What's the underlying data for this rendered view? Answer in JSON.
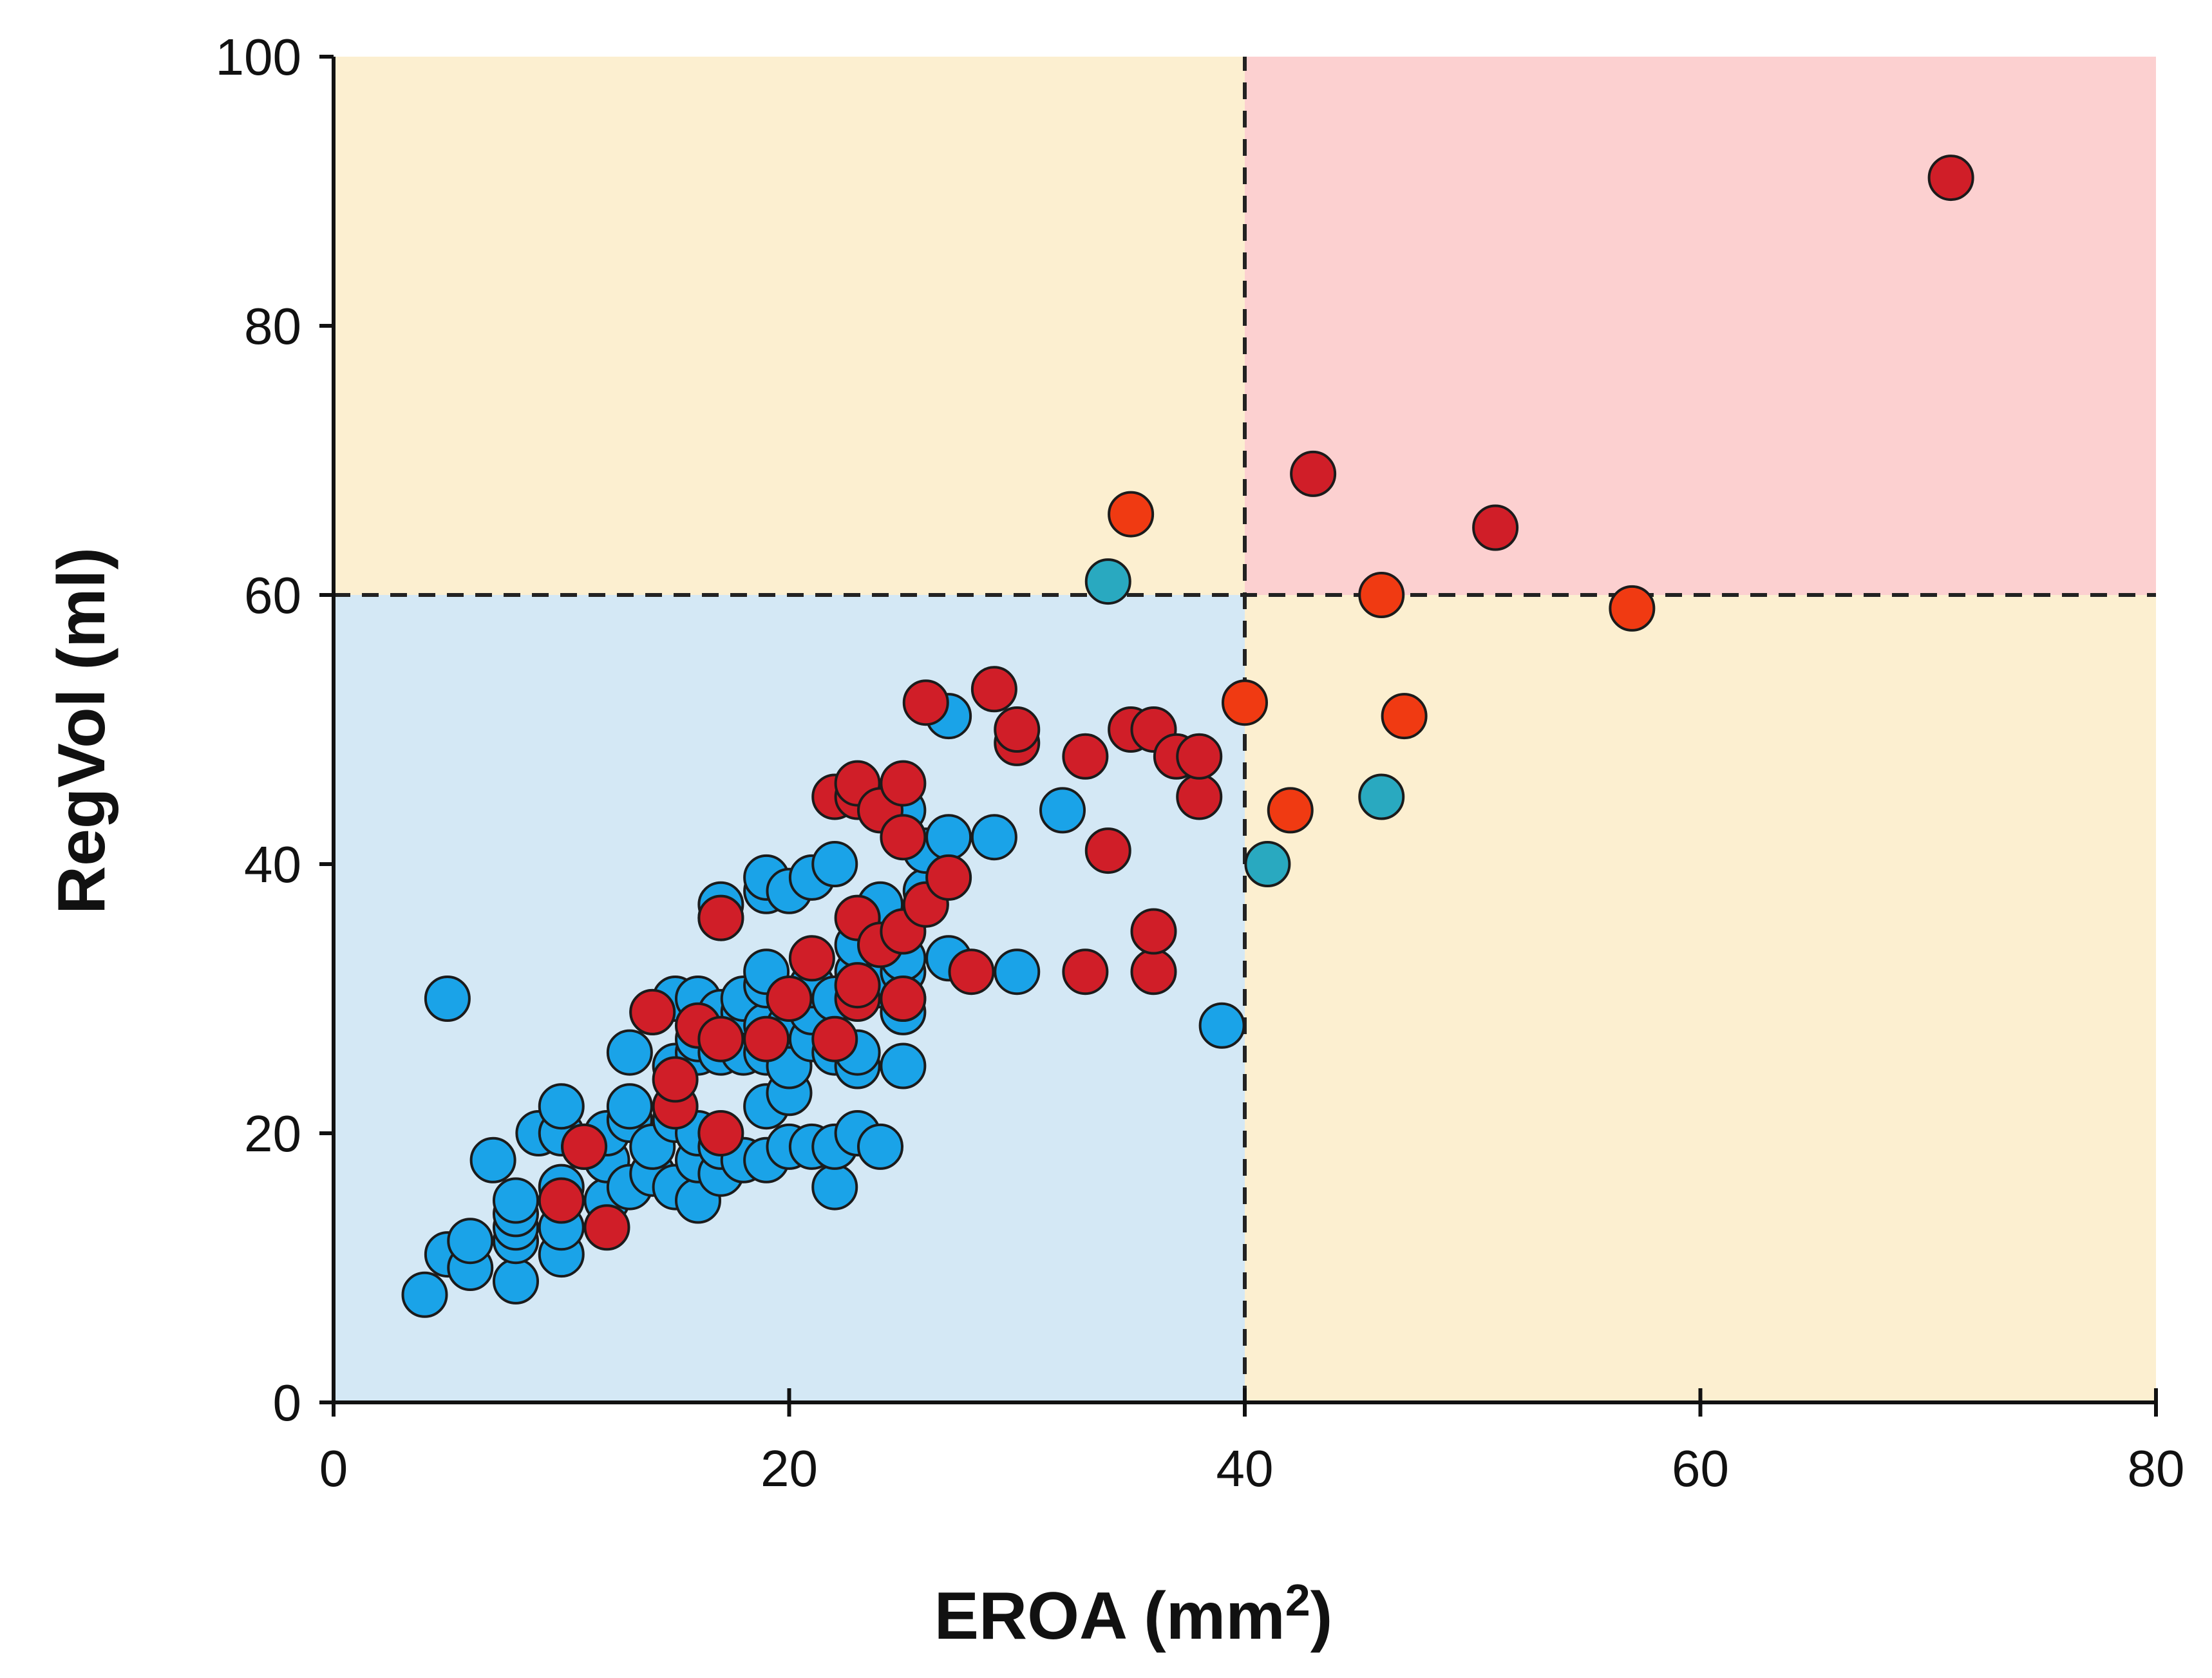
{
  "chart_data": {
    "type": "scatter",
    "xlabel": "EROA (mm",
    "xlabel_sup": "2",
    "xlabel_end": ")",
    "ylabel": "RegVol (ml)",
    "xlim": [
      0,
      80
    ],
    "ylim": [
      0,
      100
    ],
    "x_ticks": [
      0,
      20,
      40,
      60,
      80
    ],
    "y_ticks": [
      0,
      20,
      40,
      60,
      80,
      100
    ],
    "thresholds": {
      "x": 40,
      "y": 60
    },
    "grid": false,
    "legend": "none",
    "colors": {
      "region_low": "#d4e8f5",
      "region_mixed": "#fcefd0",
      "region_high": "#fcd0d0",
      "blue": "#1aa3e8",
      "red": "#d01e28",
      "teal": "#29a9c0",
      "orange_red": "#f03a12",
      "outline": "#1b1b1b"
    },
    "series": [
      {
        "color": "#1aa3e8",
        "points": [
          [
            4,
            8
          ],
          [
            5,
            11
          ],
          [
            5,
            30
          ],
          [
            6,
            10
          ],
          [
            6,
            12
          ],
          [
            7,
            18
          ],
          [
            8,
            9
          ],
          [
            8,
            12
          ],
          [
            8,
            13
          ],
          [
            8,
            14
          ],
          [
            8,
            15
          ],
          [
            9,
            20
          ],
          [
            10,
            11
          ],
          [
            10,
            13
          ],
          [
            10,
            16
          ],
          [
            10,
            20
          ],
          [
            10,
            22
          ],
          [
            11,
            19
          ],
          [
            12,
            15
          ],
          [
            12,
            18
          ],
          [
            12,
            20
          ],
          [
            13,
            16
          ],
          [
            13,
            21
          ],
          [
            13,
            22
          ],
          [
            13,
            26
          ],
          [
            14,
            17
          ],
          [
            14,
            19
          ],
          [
            14,
            29
          ],
          [
            15,
            16
          ],
          [
            15,
            21
          ],
          [
            15,
            25
          ],
          [
            15,
            30
          ],
          [
            16,
            15
          ],
          [
            16,
            18
          ],
          [
            16,
            20
          ],
          [
            16,
            26
          ],
          [
            16,
            27
          ],
          [
            16,
            30
          ],
          [
            17,
            17
          ],
          [
            17,
            19
          ],
          [
            17,
            26
          ],
          [
            17,
            29
          ],
          [
            17,
            36
          ],
          [
            17,
            37
          ],
          [
            18,
            18
          ],
          [
            18,
            26
          ],
          [
            18,
            29
          ],
          [
            18,
            30
          ],
          [
            19,
            18
          ],
          [
            19,
            22
          ],
          [
            19,
            26
          ],
          [
            19,
            28
          ],
          [
            19,
            31
          ],
          [
            19,
            32
          ],
          [
            19,
            38
          ],
          [
            19,
            39
          ],
          [
            20,
            19
          ],
          [
            20,
            23
          ],
          [
            20,
            25
          ],
          [
            20,
            28
          ],
          [
            20,
            38
          ],
          [
            21,
            19
          ],
          [
            21,
            27
          ],
          [
            21,
            29
          ],
          [
            21,
            31
          ],
          [
            21,
            39
          ],
          [
            22,
            16
          ],
          [
            22,
            19
          ],
          [
            22,
            26
          ],
          [
            22,
            30
          ],
          [
            22,
            40
          ],
          [
            23,
            20
          ],
          [
            23,
            25
          ],
          [
            23,
            26
          ],
          [
            23,
            32
          ],
          [
            23,
            34
          ],
          [
            24,
            19
          ],
          [
            24,
            31
          ],
          [
            24,
            37
          ],
          [
            25,
            25
          ],
          [
            25,
            29
          ],
          [
            25,
            30
          ],
          [
            25,
            32
          ],
          [
            25,
            33
          ],
          [
            25,
            44
          ],
          [
            26,
            37
          ],
          [
            26,
            38
          ],
          [
            26,
            41
          ],
          [
            27,
            33
          ],
          [
            27,
            42
          ],
          [
            27,
            51
          ],
          [
            29,
            42
          ],
          [
            30,
            32
          ],
          [
            32,
            44
          ],
          [
            39,
            28
          ]
        ]
      },
      {
        "color": "#29a9c0",
        "points": [
          [
            34,
            61
          ],
          [
            41,
            40
          ],
          [
            46,
            45
          ]
        ]
      },
      {
        "color": "#d01e28",
        "points": [
          [
            10,
            15
          ],
          [
            11,
            19
          ],
          [
            12,
            13
          ],
          [
            14,
            29
          ],
          [
            15,
            22
          ],
          [
            15,
            24
          ],
          [
            16,
            28
          ],
          [
            17,
            20
          ],
          [
            17,
            27
          ],
          [
            17,
            36
          ],
          [
            19,
            27
          ],
          [
            20,
            30
          ],
          [
            21,
            33
          ],
          [
            22,
            27
          ],
          [
            22,
            45
          ],
          [
            23,
            30
          ],
          [
            23,
            31
          ],
          [
            23,
            36
          ],
          [
            23,
            45
          ],
          [
            23,
            46
          ],
          [
            24,
            34
          ],
          [
            24,
            44
          ],
          [
            25,
            30
          ],
          [
            25,
            35
          ],
          [
            25,
            42
          ],
          [
            25,
            46
          ],
          [
            26,
            37
          ],
          [
            26,
            52
          ],
          [
            27,
            39
          ],
          [
            28,
            32
          ],
          [
            29,
            53
          ],
          [
            30,
            49
          ],
          [
            30,
            50
          ],
          [
            33,
            32
          ],
          [
            33,
            48
          ],
          [
            34,
            41
          ],
          [
            35,
            50
          ],
          [
            36,
            32
          ],
          [
            36,
            35
          ],
          [
            36,
            50
          ],
          [
            37,
            48
          ],
          [
            38,
            45
          ],
          [
            38,
            48
          ],
          [
            43,
            69
          ],
          [
            51,
            65
          ],
          [
            71,
            91
          ]
        ]
      },
      {
        "color": "#f03a12",
        "points": [
          [
            35,
            66
          ],
          [
            40,
            52
          ],
          [
            42,
            44
          ],
          [
            46,
            60
          ],
          [
            47,
            51
          ],
          [
            57,
            59
          ]
        ]
      }
    ]
  }
}
